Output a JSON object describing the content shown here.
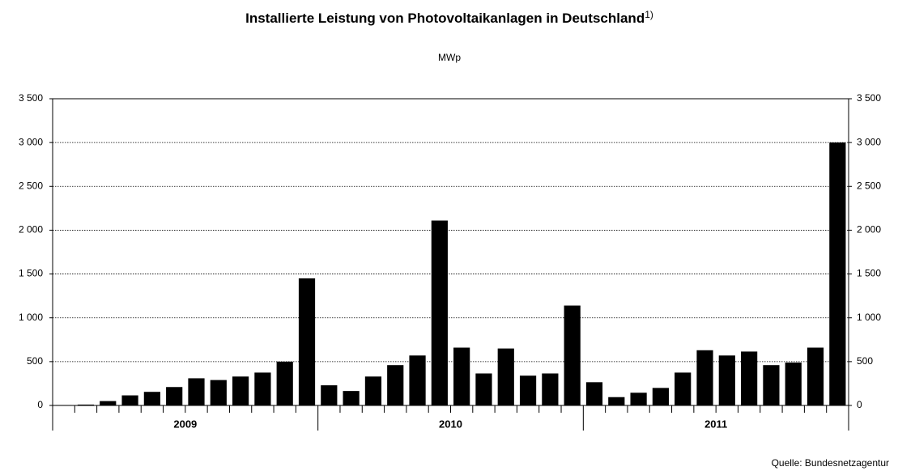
{
  "chart_data": {
    "type": "bar",
    "title": "Installierte Leistung von Photovoltaikanlagen in Deutschland",
    "title_note": "1)",
    "subtitle": "MWp",
    "source": "Quelle: Bundesnetzagentur",
    "categories": [
      null,
      null,
      null,
      null,
      null,
      null,
      null,
      null,
      null,
      null,
      null,
      null,
      null,
      null,
      null,
      null,
      null,
      null,
      null,
      null,
      null,
      null,
      null,
      null,
      null,
      null,
      null,
      null,
      null,
      null,
      null,
      null,
      null,
      null,
      null,
      null
    ],
    "groups": [
      "2009",
      "2010",
      "2011"
    ],
    "values": [
      5,
      10,
      50,
      115,
      155,
      210,
      310,
      290,
      330,
      375,
      500,
      1450,
      230,
      165,
      330,
      460,
      570,
      2110,
      660,
      365,
      650,
      340,
      365,
      1140,
      265,
      95,
      145,
      200,
      375,
      630,
      570,
      615,
      460,
      490,
      660,
      3000
    ],
    "color": "#000000",
    "ylim": [
      0,
      3500
    ],
    "yticks": [
      0,
      500,
      {
        "value": 1000,
        "label": "1 000"
      },
      {
        "value": 1500,
        "label": "1 500"
      },
      {
        "value": 2000,
        "label": "2 000"
      },
      {
        "value": 2500,
        "label": "2 500"
      },
      {
        "value": 3000,
        "label": "3 000"
      },
      {
        "value": 3500,
        "label": "3 500"
      }
    ],
    "grid": true
  }
}
